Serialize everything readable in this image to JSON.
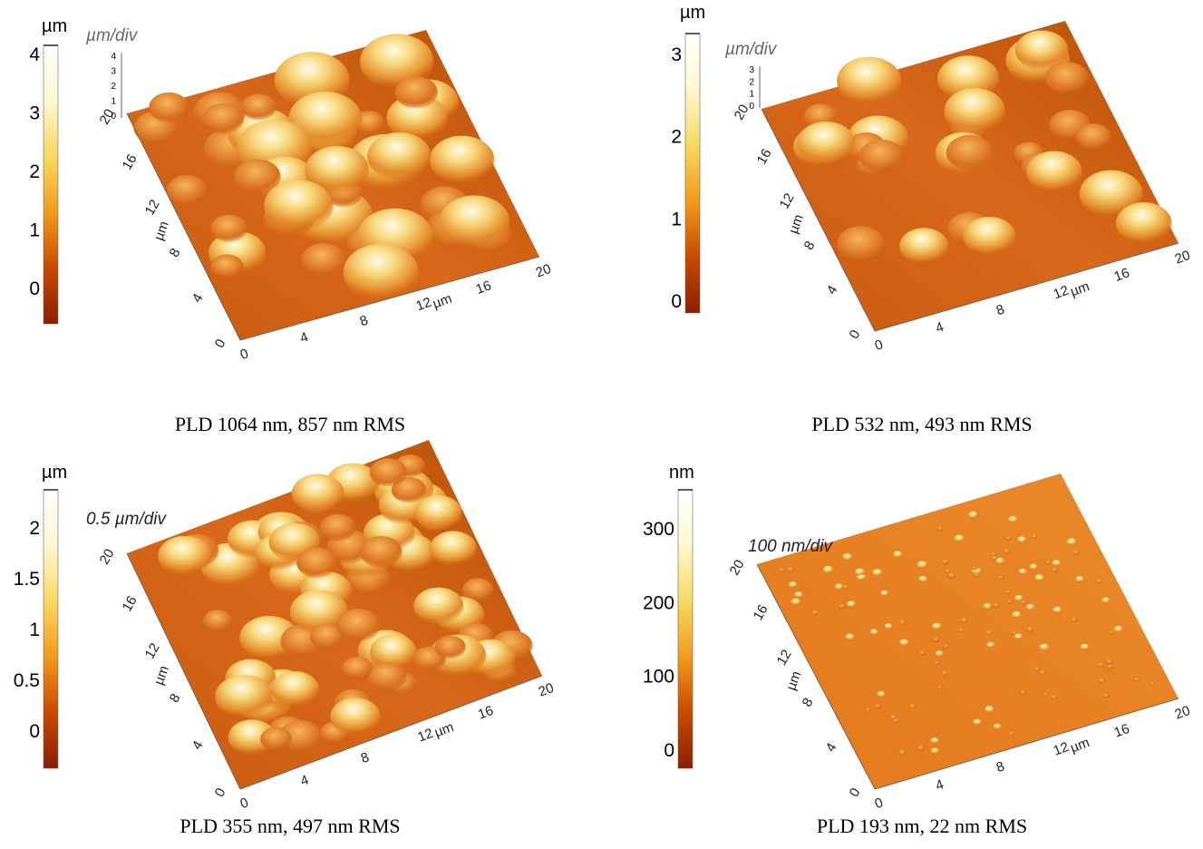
{
  "panels": [
    {
      "colorbar": {
        "unit": "µm",
        "ticks": [
          "4",
          "3",
          "2",
          "1",
          "0"
        ]
      },
      "z_scale": "µm/div",
      "z_ticks": [
        "4",
        "3",
        "2",
        "1",
        "0"
      ],
      "y_axis": {
        "label": "µm",
        "ticks": [
          "0",
          "4",
          "8",
          "12",
          "16",
          "20"
        ]
      },
      "x_axis": {
        "label": "µm",
        "ticks": [
          "0",
          "4",
          "8",
          "12",
          "16",
          "20"
        ]
      },
      "caption": "PLD 1064 nm, 857 nm RMS"
    },
    {
      "colorbar": {
        "unit": "µm",
        "ticks": [
          "3",
          "2",
          "1",
          "0"
        ]
      },
      "z_scale": "µm/div",
      "z_ticks": [
        "3",
        "2",
        "1",
        "0"
      ],
      "y_axis": {
        "label": "µm",
        "ticks": [
          "0",
          "4",
          "8",
          "12",
          "16",
          "20"
        ]
      },
      "x_axis": {
        "label": "µm",
        "ticks": [
          "0",
          "4",
          "8",
          "12",
          "16",
          "20"
        ]
      },
      "caption": "PLD 532 nm, 493 nm RMS"
    },
    {
      "colorbar": {
        "unit": "µm",
        "ticks": [
          "2",
          "1.5",
          "1",
          "0.5",
          "0"
        ]
      },
      "z_scale": "0.5 µm/div",
      "y_axis": {
        "label": "µm",
        "ticks": [
          "0",
          "4",
          "8",
          "12",
          "16",
          "20"
        ]
      },
      "x_axis": {
        "label": "µm",
        "ticks": [
          "0",
          "4",
          "8",
          "12",
          "16",
          "20"
        ]
      },
      "caption": "PLD 355 nm, 497 nm RMS"
    },
    {
      "colorbar": {
        "unit": "nm",
        "ticks": [
          "300",
          "200",
          "100",
          "0"
        ]
      },
      "z_scale": "100 nm/div",
      "y_axis": {
        "label": "µm",
        "ticks": [
          "0",
          "4",
          "8",
          "12",
          "16",
          "20"
        ]
      },
      "x_axis": {
        "label": "µm",
        "ticks": [
          "0",
          "4",
          "8",
          "12",
          "16",
          "20"
        ]
      },
      "caption": "PLD 193 nm, 22 nm RMS"
    }
  ]
}
